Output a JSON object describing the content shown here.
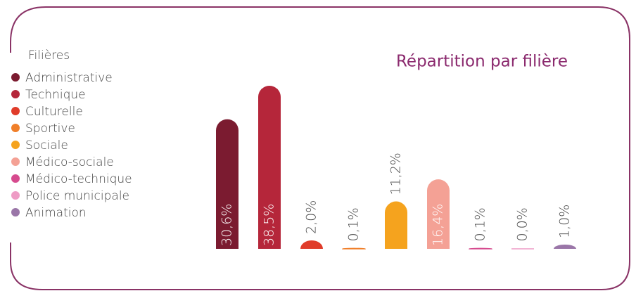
{
  "chart_data": {
    "type": "bar",
    "title": "Répartition par filière",
    "legend_title": "Filières",
    "categories": [
      "Administrative",
      "Technique",
      "Culturelle",
      "Sportive",
      "Sociale",
      "Médico-sociale",
      "Médico-technique",
      "Police municipale",
      "Animation"
    ],
    "values": [
      30.6,
      38.5,
      2.0,
      0.1,
      11.2,
      16.4,
      0.1,
      0.0,
      1.0
    ],
    "value_labels": [
      "30,6%",
      "38,5%",
      "2,0%",
      "0,1%",
      "11,2%",
      "16,4%",
      "0,1%",
      "0,0%",
      "1,0%"
    ],
    "colors": [
      "#7b1b30",
      "#b5263a",
      "#e03c2a",
      "#f07f2a",
      "#f5a31e",
      "#f4a195",
      "#d64a8e",
      "#ee9cc5",
      "#9a76a8"
    ],
    "legend": "left"
  }
}
